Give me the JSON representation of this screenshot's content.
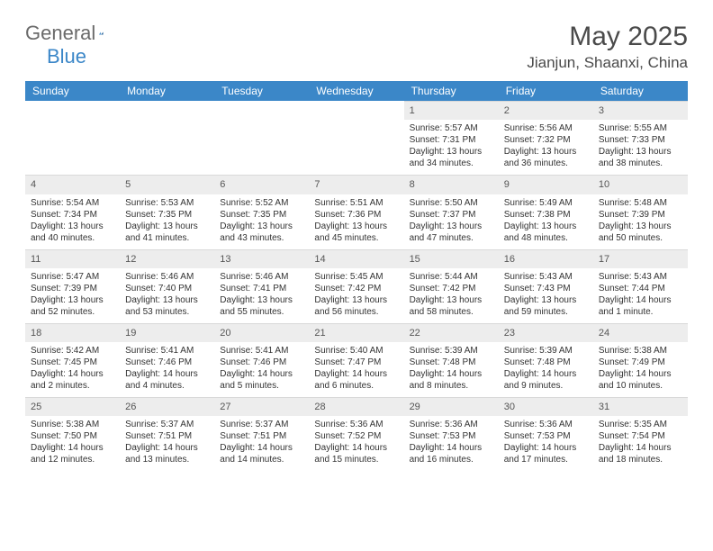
{
  "brand": {
    "name_a": "General",
    "name_b": "Blue"
  },
  "title": "May 2025",
  "location": "Jianjun, Shaanxi, China",
  "colors": {
    "header_bg": "#3b87c8",
    "header_fg": "#ffffff",
    "daynum_bg": "#ededed",
    "text": "#333333",
    "title": "#4a4a4a"
  },
  "dow": [
    "Sunday",
    "Monday",
    "Tuesday",
    "Wednesday",
    "Thursday",
    "Friday",
    "Saturday"
  ],
  "weeks": [
    [
      {
        "n": "",
        "sr": "",
        "ss": "",
        "dl": ""
      },
      {
        "n": "",
        "sr": "",
        "ss": "",
        "dl": ""
      },
      {
        "n": "",
        "sr": "",
        "ss": "",
        "dl": ""
      },
      {
        "n": "",
        "sr": "",
        "ss": "",
        "dl": ""
      },
      {
        "n": "1",
        "sr": "Sunrise: 5:57 AM",
        "ss": "Sunset: 7:31 PM",
        "dl": "Daylight: 13 hours and 34 minutes."
      },
      {
        "n": "2",
        "sr": "Sunrise: 5:56 AM",
        "ss": "Sunset: 7:32 PM",
        "dl": "Daylight: 13 hours and 36 minutes."
      },
      {
        "n": "3",
        "sr": "Sunrise: 5:55 AM",
        "ss": "Sunset: 7:33 PM",
        "dl": "Daylight: 13 hours and 38 minutes."
      }
    ],
    [
      {
        "n": "4",
        "sr": "Sunrise: 5:54 AM",
        "ss": "Sunset: 7:34 PM",
        "dl": "Daylight: 13 hours and 40 minutes."
      },
      {
        "n": "5",
        "sr": "Sunrise: 5:53 AM",
        "ss": "Sunset: 7:35 PM",
        "dl": "Daylight: 13 hours and 41 minutes."
      },
      {
        "n": "6",
        "sr": "Sunrise: 5:52 AM",
        "ss": "Sunset: 7:35 PM",
        "dl": "Daylight: 13 hours and 43 minutes."
      },
      {
        "n": "7",
        "sr": "Sunrise: 5:51 AM",
        "ss": "Sunset: 7:36 PM",
        "dl": "Daylight: 13 hours and 45 minutes."
      },
      {
        "n": "8",
        "sr": "Sunrise: 5:50 AM",
        "ss": "Sunset: 7:37 PM",
        "dl": "Daylight: 13 hours and 47 minutes."
      },
      {
        "n": "9",
        "sr": "Sunrise: 5:49 AM",
        "ss": "Sunset: 7:38 PM",
        "dl": "Daylight: 13 hours and 48 minutes."
      },
      {
        "n": "10",
        "sr": "Sunrise: 5:48 AM",
        "ss": "Sunset: 7:39 PM",
        "dl": "Daylight: 13 hours and 50 minutes."
      }
    ],
    [
      {
        "n": "11",
        "sr": "Sunrise: 5:47 AM",
        "ss": "Sunset: 7:39 PM",
        "dl": "Daylight: 13 hours and 52 minutes."
      },
      {
        "n": "12",
        "sr": "Sunrise: 5:46 AM",
        "ss": "Sunset: 7:40 PM",
        "dl": "Daylight: 13 hours and 53 minutes."
      },
      {
        "n": "13",
        "sr": "Sunrise: 5:46 AM",
        "ss": "Sunset: 7:41 PM",
        "dl": "Daylight: 13 hours and 55 minutes."
      },
      {
        "n": "14",
        "sr": "Sunrise: 5:45 AM",
        "ss": "Sunset: 7:42 PM",
        "dl": "Daylight: 13 hours and 56 minutes."
      },
      {
        "n": "15",
        "sr": "Sunrise: 5:44 AM",
        "ss": "Sunset: 7:42 PM",
        "dl": "Daylight: 13 hours and 58 minutes."
      },
      {
        "n": "16",
        "sr": "Sunrise: 5:43 AM",
        "ss": "Sunset: 7:43 PM",
        "dl": "Daylight: 13 hours and 59 minutes."
      },
      {
        "n": "17",
        "sr": "Sunrise: 5:43 AM",
        "ss": "Sunset: 7:44 PM",
        "dl": "Daylight: 14 hours and 1 minute."
      }
    ],
    [
      {
        "n": "18",
        "sr": "Sunrise: 5:42 AM",
        "ss": "Sunset: 7:45 PM",
        "dl": "Daylight: 14 hours and 2 minutes."
      },
      {
        "n": "19",
        "sr": "Sunrise: 5:41 AM",
        "ss": "Sunset: 7:46 PM",
        "dl": "Daylight: 14 hours and 4 minutes."
      },
      {
        "n": "20",
        "sr": "Sunrise: 5:41 AM",
        "ss": "Sunset: 7:46 PM",
        "dl": "Daylight: 14 hours and 5 minutes."
      },
      {
        "n": "21",
        "sr": "Sunrise: 5:40 AM",
        "ss": "Sunset: 7:47 PM",
        "dl": "Daylight: 14 hours and 6 minutes."
      },
      {
        "n": "22",
        "sr": "Sunrise: 5:39 AM",
        "ss": "Sunset: 7:48 PM",
        "dl": "Daylight: 14 hours and 8 minutes."
      },
      {
        "n": "23",
        "sr": "Sunrise: 5:39 AM",
        "ss": "Sunset: 7:48 PM",
        "dl": "Daylight: 14 hours and 9 minutes."
      },
      {
        "n": "24",
        "sr": "Sunrise: 5:38 AM",
        "ss": "Sunset: 7:49 PM",
        "dl": "Daylight: 14 hours and 10 minutes."
      }
    ],
    [
      {
        "n": "25",
        "sr": "Sunrise: 5:38 AM",
        "ss": "Sunset: 7:50 PM",
        "dl": "Daylight: 14 hours and 12 minutes."
      },
      {
        "n": "26",
        "sr": "Sunrise: 5:37 AM",
        "ss": "Sunset: 7:51 PM",
        "dl": "Daylight: 14 hours and 13 minutes."
      },
      {
        "n": "27",
        "sr": "Sunrise: 5:37 AM",
        "ss": "Sunset: 7:51 PM",
        "dl": "Daylight: 14 hours and 14 minutes."
      },
      {
        "n": "28",
        "sr": "Sunrise: 5:36 AM",
        "ss": "Sunset: 7:52 PM",
        "dl": "Daylight: 14 hours and 15 minutes."
      },
      {
        "n": "29",
        "sr": "Sunrise: 5:36 AM",
        "ss": "Sunset: 7:53 PM",
        "dl": "Daylight: 14 hours and 16 minutes."
      },
      {
        "n": "30",
        "sr": "Sunrise: 5:36 AM",
        "ss": "Sunset: 7:53 PM",
        "dl": "Daylight: 14 hours and 17 minutes."
      },
      {
        "n": "31",
        "sr": "Sunrise: 5:35 AM",
        "ss": "Sunset: 7:54 PM",
        "dl": "Daylight: 14 hours and 18 minutes."
      }
    ]
  ]
}
